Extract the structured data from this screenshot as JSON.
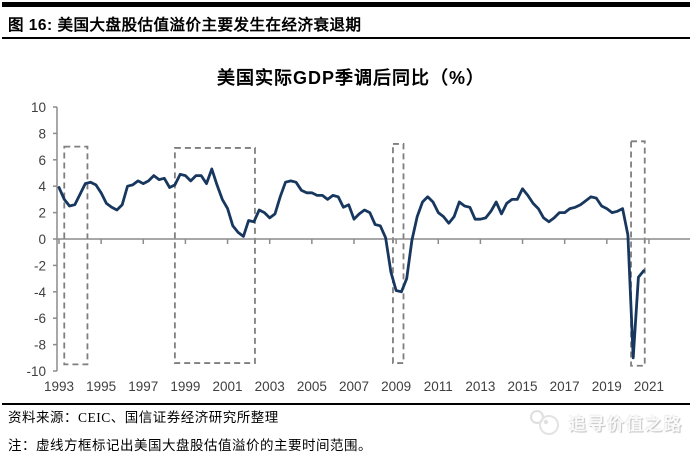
{
  "header": {
    "figure_label": "图 16:",
    "title": "美国大盘股估值溢价主要发生在经济衰退期"
  },
  "chart_data": {
    "type": "line",
    "title": "美国实际GDP季调后同比（%）",
    "series_name": "美国实际GDP季调后同比",
    "unit": "%",
    "frequency": "quarterly",
    "start_year": 1993,
    "values": [
      3.9,
      3.0,
      2.5,
      2.6,
      3.4,
      4.2,
      4.3,
      4.1,
      3.5,
      2.7,
      2.4,
      2.2,
      2.6,
      4.0,
      4.1,
      4.4,
      4.2,
      4.4,
      4.8,
      4.5,
      4.6,
      3.9,
      4.1,
      4.9,
      4.8,
      4.4,
      4.8,
      4.8,
      4.2,
      5.3,
      4.1,
      3.0,
      2.3,
      1.0,
      0.5,
      0.2,
      1.4,
      1.3,
      2.2,
      2.0,
      1.6,
      1.9,
      3.2,
      4.3,
      4.4,
      4.3,
      3.7,
      3.5,
      3.5,
      3.3,
      3.3,
      3.0,
      3.3,
      3.2,
      2.4,
      2.6,
      1.5,
      1.9,
      2.2,
      2.0,
      1.1,
      1.0,
      0.1,
      -2.5,
      -3.9,
      -4.0,
      -3.0,
      -0.1,
      1.7,
      2.8,
      3.2,
      2.8,
      2.0,
      1.7,
      1.2,
      1.7,
      2.8,
      2.5,
      2.4,
      1.5,
      1.5,
      1.6,
      2.1,
      2.8,
      1.9,
      2.7,
      3.0,
      3.0,
      3.8,
      3.3,
      2.7,
      2.3,
      1.6,
      1.3,
      1.6,
      2.0,
      2.0,
      2.3,
      2.4,
      2.6,
      2.9,
      3.2,
      3.1,
      2.5,
      2.3,
      2.0,
      2.1,
      2.3,
      0.3,
      -9.0,
      -2.9,
      -2.4
    ],
    "xticks": [
      1993,
      1995,
      1997,
      1999,
      2001,
      2003,
      2005,
      2007,
      2009,
      2011,
      2013,
      2015,
      2017,
      2019,
      2021
    ],
    "yticks": [
      10,
      8,
      6,
      4,
      2,
      0,
      -2,
      -4,
      -6,
      -8,
      -10
    ],
    "ylim": [
      -10,
      10
    ],
    "grid": false,
    "legend": "none",
    "line_color": "#17375E",
    "axis_color": "#8C8C8C",
    "tick_label_color": "#404040",
    "box_color": "#7F7F7F",
    "recession_boxes": [
      {
        "x0": 1993.25,
        "x1": 1994.35,
        "bottom": -9.5,
        "top": 7.0
      },
      {
        "x0": 1998.5,
        "x1": 2002.3,
        "bottom": -9.4,
        "top": 6.9
      },
      {
        "x0": 2008.85,
        "x1": 2009.35,
        "bottom": -9.4,
        "top": 7.2
      },
      {
        "x0": 2020.15,
        "x1": 2020.8,
        "bottom": -9.6,
        "top": 7.4
      }
    ]
  },
  "footer": {
    "source": "资料来源：CEIC、国信证券经济研究所整理",
    "note": "注：虚线方框标记出美国大盘股估值溢价的主要时间范围。",
    "watermark": "追寻价值之路"
  }
}
